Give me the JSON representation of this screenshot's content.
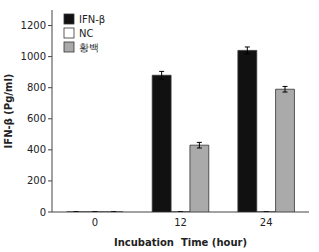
{
  "chart_data": {
    "type": "bar",
    "categories": [
      "0",
      "12",
      "24"
    ],
    "series": [
      {
        "name": "IFN-β",
        "color": "#111111",
        "values": [
          0,
          880,
          1040
        ],
        "errors": [
          0,
          25,
          22
        ]
      },
      {
        "name": "NC",
        "color": "#ffffff",
        "values": [
          0,
          0,
          0
        ],
        "errors": [
          0,
          0,
          0
        ]
      },
      {
        "name": "황백",
        "color": "#aaaaaa",
        "values": [
          0,
          430,
          790
        ],
        "errors": [
          0,
          18,
          18
        ]
      }
    ],
    "xlabel": "Incubation  Time (hour)",
    "ylabel": "IFN-β (Pg/ml)",
    "ylim": [
      0,
      1300
    ],
    "yticks": [
      0,
      200,
      400,
      600,
      800,
      1000,
      1200
    ],
    "grid": false,
    "legend": "upper left"
  }
}
